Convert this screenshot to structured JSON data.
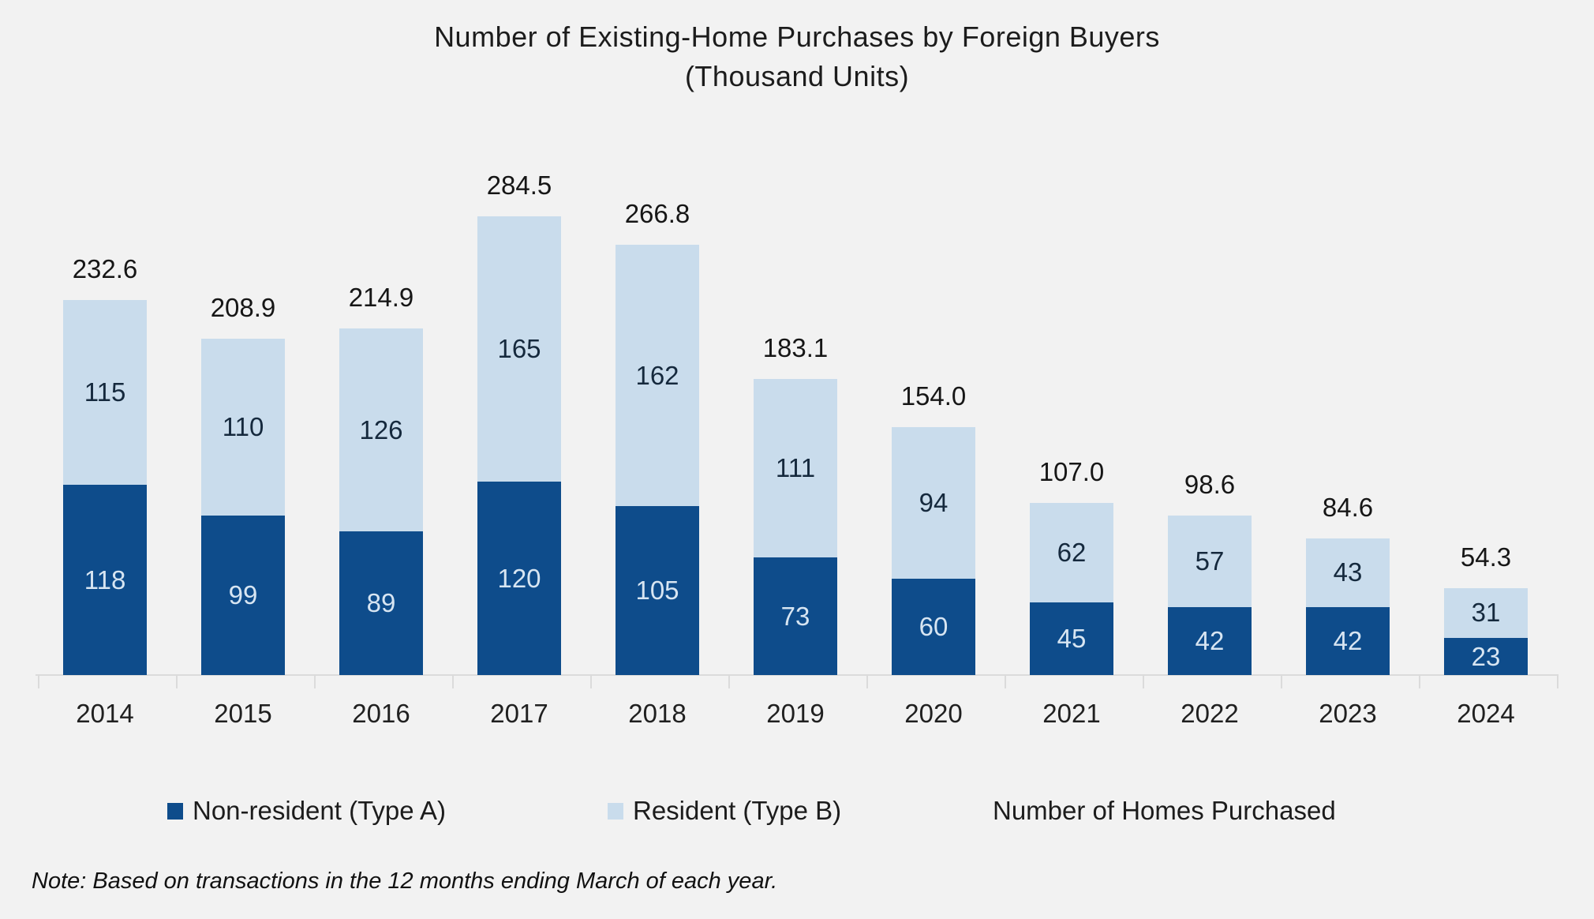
{
  "title": {
    "line1": "Number of Existing-Home Purchases by Foreign Buyers",
    "line2": "(Thousand Units)"
  },
  "legend": {
    "items": [
      {
        "label": "Non-resident (Type A)",
        "swatch_color": "#0e4c8b"
      },
      {
        "label": "Resident (Type B)",
        "swatch_color": "#c9dcec"
      },
      {
        "label": "Number of Homes Purchased",
        "swatch_color": null
      }
    ]
  },
  "note": {
    "text": "Note: Based on transactions in the 12 months ending March of each year."
  },
  "colors": {
    "non_resident": "#0e4c8b",
    "resident": "#c9dcec",
    "background": "#f2f2f2",
    "axis": "#dbdbdb",
    "label_on_dark": "#d7e5f2",
    "label_on_light": "#15293d"
  },
  "chart_data": {
    "type": "bar",
    "stacked": true,
    "title": "Number of Existing-Home Purchases by Foreign Buyers (Thousand Units)",
    "xlabel": "",
    "ylabel": "Thousand Units",
    "categories": [
      "2014",
      "2015",
      "2016",
      "2017",
      "2018",
      "2019",
      "2020",
      "2021",
      "2022",
      "2023",
      "2024"
    ],
    "series": [
      {
        "name": "Non-resident (Type A)",
        "color": "#0e4c8b",
        "values": [
          118,
          99,
          89,
          120,
          105,
          73,
          60,
          45,
          42,
          42,
          23
        ]
      },
      {
        "name": "Resident (Type B)",
        "color": "#c9dcec",
        "values": [
          115,
          110,
          126,
          165,
          162,
          111,
          94,
          62,
          57,
          43,
          31
        ]
      }
    ],
    "totals": [
      232.6,
      208.9,
      214.9,
      284.5,
      266.8,
      183.1,
      154.0,
      107.0,
      98.6,
      84.6,
      54.3
    ],
    "total_labels": [
      "232.6",
      "208.9",
      "214.9",
      "284.5",
      "266.8",
      "183.1",
      "154.0",
      "107.0",
      "98.6",
      "84.6",
      "54.3"
    ],
    "ylim": [
      0,
      300
    ],
    "grid": false,
    "y_axis_shown": false,
    "legend_position": "bottom",
    "annotations": "totals shown above bars, segment values inside bars"
  }
}
